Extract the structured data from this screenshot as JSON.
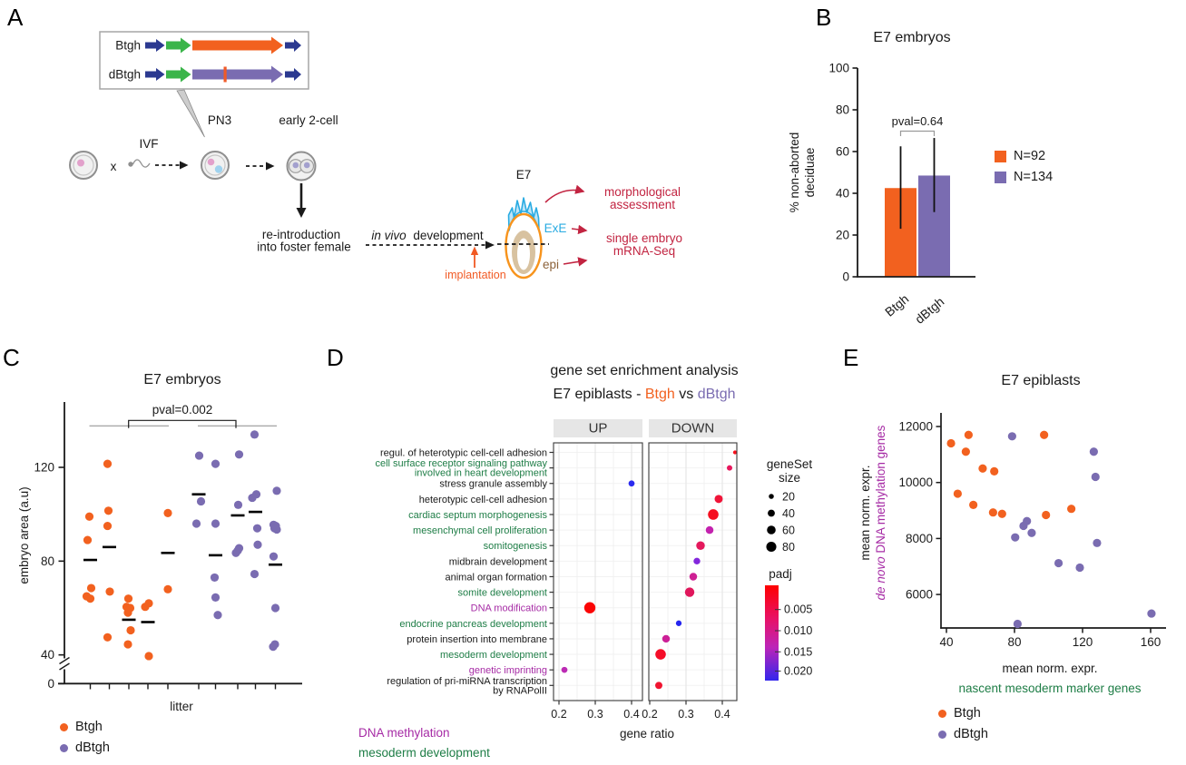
{
  "figure_labels": {
    "a": "A",
    "b": "B",
    "c": "C",
    "d": "D",
    "e": "E"
  },
  "colors": {
    "orange": "#F2611F",
    "purple": "#7A6CB1",
    "navy": "#2B3990",
    "green_arrow": "#3BB54A",
    "red_mark": "#F05A28",
    "crimson": "#C22441",
    "implant_orange": "#F15A24",
    "exe_blue": "#29ABE2",
    "epi_brown": "#8C6239",
    "embryo_orange": "#F7941D",
    "embryo_blue_fill": "#BFE5F8",
    "epi_tan": "#D8C2A0",
    "green_text": "#1E7D46",
    "magenta_text": "#A62BA5"
  },
  "panel_a": {
    "label_row1": "Btgh",
    "label_row2": "dBtgh",
    "ivf": "IVF",
    "cross": "x",
    "pn3": "PN3",
    "two_cell": "early 2-cell",
    "reintro_line1": "re-introduction",
    "reintro_line2": "into foster female",
    "invivo_italic": "in vivo",
    "invivo_rest": " development",
    "implantation": "implantation",
    "e7": "E7",
    "exe": "ExE",
    "epi": "epi",
    "morph_line1": "morphological",
    "morph_line2": "assessment",
    "seq_line1": "single embryo",
    "seq_line2": "mRNA-Seq"
  },
  "chart_data": [
    {
      "id": "b",
      "type": "bar",
      "title": "E7 embryos",
      "ylabel_line1": "% non-aborted",
      "ylabel_line2": "deciduae",
      "ylim": [
        0,
        100
      ],
      "yticks": [
        0,
        20,
        40,
        60,
        80,
        100
      ],
      "categories": [
        "Btgh",
        "dBtgh"
      ],
      "values": [
        42.5,
        48.5
      ],
      "error_low": [
        23,
        31
      ],
      "error_high": [
        62.5,
        66.5
      ],
      "bar_colors": [
        "orange",
        "purple"
      ],
      "pval_label": "pval=0.64",
      "legend": [
        {
          "label": "N=92",
          "color": "orange"
        },
        {
          "label": "N=134",
          "color": "purple"
        }
      ]
    },
    {
      "id": "c",
      "type": "scatter",
      "title": "E7 embryos",
      "ylabel": "embryo area (a.u)",
      "xlabel": "litter",
      "yticks": [
        0,
        40,
        80,
        120
      ],
      "axis_break": true,
      "pval_label": "pval=0.002",
      "groups": [
        {
          "name": "Btgh",
          "color": "orange",
          "litters": [
            {
              "x": 99.5,
              "median": 80.5,
              "points": [
                [
                  -1,
                  99
                ],
                [
                  -3,
                  89
                ],
                [
                  1,
                  68.5
                ],
                [
                  -4,
                  65
                ],
                [
                  0,
                  64
                ]
              ]
            },
            {
              "x": 120.5,
              "median": 86,
              "points": [
                [
                  -2,
                  121.5
                ],
                [
                  -1,
                  101.5
                ],
                [
                  -2,
                  95
                ],
                [
                  0.5,
                  67
                ],
                [
                  -2,
                  47.5
                ]
              ]
            },
            {
              "x": 142,
              "median": 55,
              "points": [
                [
                  -0.5,
                  64
                ],
                [
                  -2.5,
                  60.5
                ],
                [
                  1.5,
                  60
                ],
                [
                  -1,
                  58
                ],
                [
                  2,
                  50.5
                ],
                [
                  -1,
                  44.5
                ]
              ]
            },
            {
              "x": 163,
              "median": 54,
              "points": [
                [
                  -3,
                  60.5
                ],
                [
                  1,
                  62
                ],
                [
                  1,
                  39.5
                ]
              ]
            },
            {
              "x": 185,
              "median": 83.5,
              "points": [
                [
                  0,
                  100.5
                ],
                [
                  0,
                  68
                ]
              ]
            }
          ]
        },
        {
          "name": "dBtgh",
          "color": "purple",
          "litters": [
            {
              "x": 219,
              "median": 108.5,
              "points": [
                [
                  0.5,
                  125
                ],
                [
                  2.5,
                  105.5
                ],
                [
                  -2.5,
                  96
                ]
              ]
            },
            {
              "x": 237.5,
              "median": 82.5,
              "points": [
                [
                  0,
                  121.5
                ],
                [
                  0,
                  96
                ],
                [
                  -1,
                  73
                ],
                [
                  0,
                  64.5
                ],
                [
                  2.5,
                  57
                ]
              ]
            },
            {
              "x": 262,
              "median": 99.5,
              "points": [
                [
                  1.5,
                  125.5
                ],
                [
                  0.5,
                  104
                ],
                [
                  -2,
                  83.5
                ],
                [
                  0,
                  84.5
                ],
                [
                  1.5,
                  85.5
                ]
              ]
            },
            {
              "x": 281.5,
              "median": 101,
              "points": [
                [
                  -1,
                  134
                ],
                [
                  -3.5,
                  107
                ],
                [
                  1,
                  108.5
                ],
                [
                  2,
                  94
                ],
                [
                  2.5,
                  87
                ],
                [
                  -1,
                  74.5
                ]
              ]
            },
            {
              "x": 303.5,
              "median": 78.5,
              "points": [
                [
                  1.5,
                  110
                ],
                [
                  -2,
                  95.5
                ],
                [
                  0.5,
                  95
                ],
                [
                  -1,
                  94
                ],
                [
                  1.5,
                  93.5
                ],
                [
                  -2,
                  82
                ],
                [
                  0,
                  60
                ],
                [
                  -2.5,
                  43.5
                ],
                [
                  -0.5,
                  44.5
                ]
              ]
            }
          ]
        }
      ],
      "legend": [
        {
          "label": "Btgh",
          "color": "orange"
        },
        {
          "label": "dBtgh",
          "color": "purple"
        }
      ]
    },
    {
      "id": "d",
      "type": "dotplot",
      "title_line1": "gene set enrichment analysis",
      "title_line2_prefix": "E7 epiblasts - ",
      "title_orange": "Btgh",
      "title_mid": " vs ",
      "title_purple": "dBtgh",
      "facets": [
        "UP",
        "DOWN"
      ],
      "xlabel": "gene ratio",
      "xticks": [
        0.2,
        0.3,
        0.4
      ],
      "xtick_labels": [
        "0.2",
        "0.3",
        "0.4"
      ],
      "rows": [
        {
          "term": "regul. of heterotypic cell-cell adhesion",
          "label_color": "black",
          "facet": "DOWN",
          "gene_ratio": 0.435,
          "gene_set_size": 10,
          "padj": 0.004,
          "dot_color": "#F7101C"
        },
        {
          "term": "cell surface receptor signaling pathway",
          "term2": "involved in heart development",
          "label_color": "green",
          "facet": "DOWN",
          "gene_ratio": 0.42,
          "gene_set_size": 20,
          "padj": 0.007,
          "dot_color": "#E8175D"
        },
        {
          "term": "stress granule assembly",
          "label_color": "black",
          "facet": "UP",
          "gene_ratio": 0.4,
          "gene_set_size": 25,
          "padj": 0.02,
          "dot_color": "#2A2AEF"
        },
        {
          "term": "heterotypic cell-cell adhesion",
          "label_color": "black",
          "facet": "DOWN",
          "gene_ratio": 0.39,
          "gene_set_size": 45,
          "padj": 0.005,
          "dot_color": "#F01438"
        },
        {
          "term": "cardiac septum morphogenesis",
          "label_color": "green",
          "facet": "DOWN",
          "gene_ratio": 0.375,
          "gene_set_size": 75,
          "padj": 0.005,
          "dot_color": "#F50F20"
        },
        {
          "term": "mesenchymal cell proliferation",
          "label_color": "green",
          "facet": "DOWN",
          "gene_ratio": 0.365,
          "gene_set_size": 40,
          "padj": 0.012,
          "dot_color": "#C322AE"
        },
        {
          "term": "somitogenesis",
          "label_color": "green",
          "facet": "DOWN",
          "gene_ratio": 0.34,
          "gene_set_size": 50,
          "padj": 0.008,
          "dot_color": "#E4185C"
        },
        {
          "term": "midbrain development",
          "label_color": "black",
          "facet": "DOWN",
          "gene_ratio": 0.33,
          "gene_set_size": 30,
          "padj": 0.016,
          "dot_color": "#8327DC"
        },
        {
          "term": "animal organ formation",
          "label_color": "black",
          "facet": "DOWN",
          "gene_ratio": 0.32,
          "gene_set_size": 40,
          "padj": 0.01,
          "dot_color": "#CE2094"
        },
        {
          "term": "somite development",
          "label_color": "green",
          "facet": "DOWN",
          "gene_ratio": 0.31,
          "gene_set_size": 60,
          "padj": 0.008,
          "dot_color": "#E0175C"
        },
        {
          "term": "DNA modification",
          "label_color": "magenta",
          "facet": "UP",
          "gene_ratio": 0.285,
          "gene_set_size": 85,
          "padj": 0.004,
          "dot_color": "#FB0505"
        },
        {
          "term": "endocrine pancreas development",
          "label_color": "green",
          "facet": "DOWN",
          "gene_ratio": 0.28,
          "gene_set_size": 22,
          "padj": 0.019,
          "dot_color": "#2525EF"
        },
        {
          "term": "protein insertion into membrane",
          "label_color": "black",
          "facet": "DOWN",
          "gene_ratio": 0.245,
          "gene_set_size": 40,
          "padj": 0.011,
          "dot_color": "#CC2097"
        },
        {
          "term": "mesoderm development",
          "label_color": "green",
          "facet": "DOWN",
          "gene_ratio": 0.23,
          "gene_set_size": 75,
          "padj": 0.005,
          "dot_color": "#F50D28"
        },
        {
          "term": "genetic imprinting",
          "label_color": "magenta",
          "facet": "UP",
          "gene_ratio": 0.215,
          "gene_set_size": 25,
          "padj": 0.013,
          "dot_color": "#BC2BB4"
        },
        {
          "term": "regulation of pri-miRNA transcription",
          "term2": "by RNAPolII",
          "label_color": "black",
          "facet": "DOWN",
          "gene_ratio": 0.225,
          "gene_set_size": 35,
          "padj": 0.005,
          "dot_color": "#F01430"
        }
      ],
      "size_legend": {
        "title_line1": "geneSet",
        "title_line2": "size",
        "entries": [
          20,
          40,
          60,
          80
        ]
      },
      "color_legend": {
        "title": "padj",
        "ticks": [
          "0.005",
          "0.010",
          "0.015",
          "0.020"
        ],
        "gradient_stops": [
          {
            "offset": "0%",
            "color": "#FE0000"
          },
          {
            "offset": "35%",
            "color": "#E81266"
          },
          {
            "offset": "65%",
            "color": "#BC25B8"
          },
          {
            "offset": "100%",
            "color": "#3326EC"
          }
        ]
      },
      "footnotes": [
        {
          "text": "DNA methylation",
          "color": "magenta"
        },
        {
          "text": "mesoderm development",
          "color": "green"
        }
      ]
    },
    {
      "id": "e",
      "type": "scatter",
      "title": "E7 epiblasts",
      "ylabel_line1": "mean norm. expr.",
      "ylabel_line2_italic": "de novo",
      "ylabel_line2_rest": " DNA methylation genes",
      "xlabel_line1": "mean norm. expr.",
      "xlabel_line2": "nascent mesoderm marker genes",
      "xticks": [
        40,
        80,
        120,
        160
      ],
      "yticks": [
        6000,
        8000,
        10000,
        12000
      ],
      "series": [
        {
          "name": "Btgh",
          "color": "orange",
          "points": [
            [
              42.7,
              11400
            ],
            [
              51.4,
              11100
            ],
            [
              53,
              11700
            ],
            [
              61.3,
              10500
            ],
            [
              68.1,
              10400
            ],
            [
              46.6,
              9600
            ],
            [
              55.8,
              9200
            ],
            [
              67.4,
              8930
            ],
            [
              72.7,
              8880
            ],
            [
              97.4,
              11700
            ],
            [
              98.5,
              8840
            ],
            [
              113.4,
              9060
            ]
          ]
        },
        {
          "name": "dBtgh",
          "color": "purple",
          "points": [
            [
              78.6,
              11650
            ],
            [
              126.6,
              11100
            ],
            [
              127.6,
              10200
            ],
            [
              80.4,
              8040
            ],
            [
              85.3,
              8450
            ],
            [
              87.3,
              8620
            ],
            [
              90.1,
              8200
            ],
            [
              128.5,
              7840
            ],
            [
              105.9,
              7120
            ],
            [
              118.4,
              6960
            ],
            [
              81.8,
              4950
            ],
            [
              160.5,
              5320
            ]
          ]
        }
      ],
      "legend": [
        {
          "label": "Btgh",
          "color": "orange"
        },
        {
          "label": "dBtgh",
          "color": "purple"
        }
      ]
    }
  ]
}
